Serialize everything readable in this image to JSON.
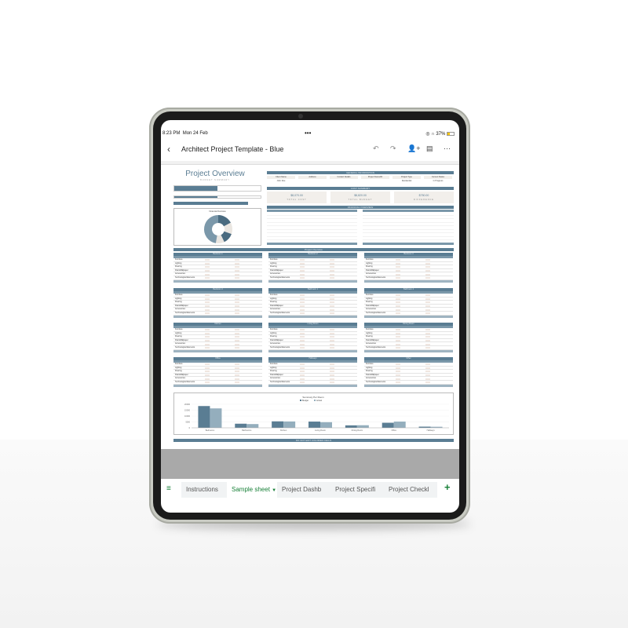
{
  "status_bar": {
    "time": "8:23 PM",
    "date": "Mon 24 Feb",
    "battery": "37%"
  },
  "header": {
    "title": "Architect Project Template - Blue",
    "back_icon": "chevron-left-icon"
  },
  "sheet": {
    "overview_title": "Project Overview",
    "overview_subtitle": "BUDGET SUMMARY",
    "general_information": "GENERAL INFORMATION",
    "info_fields": [
      {
        "label": "Client Name",
        "value": "John Doe"
      },
      {
        "label": "Address",
        "value": ""
      },
      {
        "label": "Contact Details",
        "value": ""
      },
      {
        "label": "Project Name/ID",
        "value": ""
      },
      {
        "label": "Project Type",
        "value": "Residential"
      },
      {
        "label": "Current Status",
        "value": "In Progress"
      }
    ],
    "cost_summary": "COST SUMMARY",
    "costs": [
      {
        "value": "$8,070.00",
        "label": "TOTAL COST"
      },
      {
        "value": "$8,820.00",
        "label": "TOTAL BUDGET"
      },
      {
        "value": "$750.00",
        "label": "DIFFERENCE"
      }
    ],
    "financial_overview": "FINANCIAL OVERVIEW",
    "pie_title": "Financial Overview",
    "project_overview_bar": "Project Overview",
    "grid_rows": [
      "Furniture",
      "Lighting",
      "Flooring",
      "Paint/Wallpaper",
      "Accessories",
      "Technological Elements"
    ],
    "rooms": [
      "Bedroom 1",
      "Bedroom 2",
      "Bedroom 3",
      "Bedroom 4",
      "Bathroom 1",
      "Bathroom 2",
      "Kitchen",
      "Living Room",
      "Dining Room",
      "Office",
      "Hallways",
      "Other"
    ],
    "footer_bar": "DO NOT EDIT COLORED CELLS"
  },
  "chart_data": {
    "type": "bar",
    "title": "Summary Per Room",
    "categories": [
      "Bedrooms",
      "Bathrooms",
      "Kitchen",
      "Living Room",
      "Dining Room",
      "Office",
      "Hallways"
    ],
    "series": [
      {
        "name": "Budget",
        "values": [
          18500,
          3500,
          5500,
          5300,
          2100,
          4300,
          1000
        ],
        "color": "#5a7d93"
      },
      {
        "name": "Actual",
        "values": [
          16500,
          3200,
          5400,
          4800,
          2200,
          5300,
          900
        ],
        "color": "#94aebd"
      }
    ],
    "ylim": [
      0,
      20000
    ],
    "yticks": [
      0,
      5000,
      10000,
      15000,
      20000
    ],
    "legend": "top"
  },
  "tabs": [
    {
      "label": "Instructions"
    },
    {
      "label": "Sample sheet",
      "active": true
    },
    {
      "label": "Project Dashb"
    },
    {
      "label": "Project Specifi"
    },
    {
      "label": "Project Checkl"
    }
  ]
}
